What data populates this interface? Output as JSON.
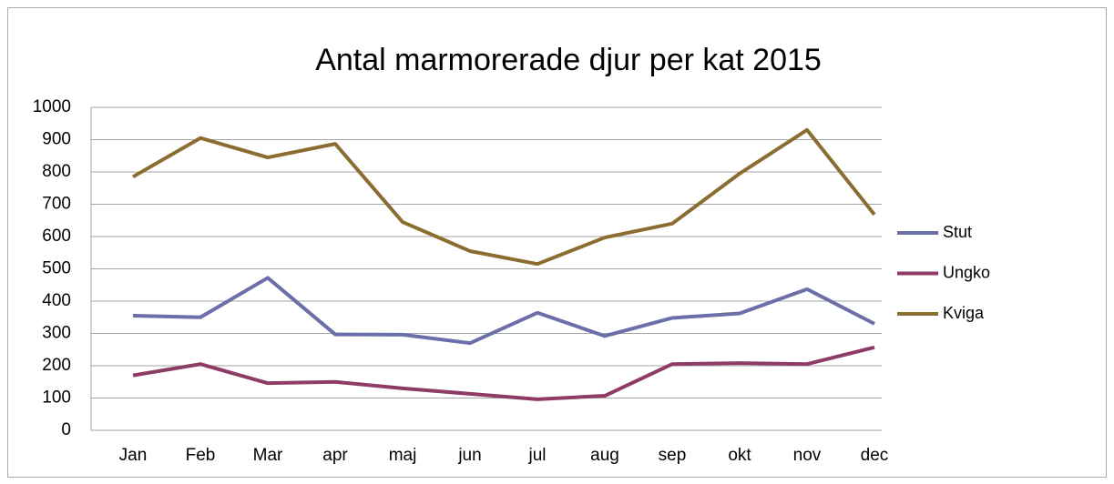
{
  "chart_data": {
    "type": "line",
    "title": "Antal marmorerade djur per kat 2015",
    "categories": [
      "Jan",
      "Feb",
      "Mar",
      "apr",
      "maj",
      "jun",
      "jul",
      "aug",
      "sep",
      "okt",
      "nov",
      "dec"
    ],
    "series": [
      {
        "name": "Stut",
        "color": "#6b6ea8",
        "values": [
          355,
          350,
          472,
          297,
          296,
          270,
          364,
          292,
          348,
          362,
          437,
          330
        ]
      },
      {
        "name": "Ungko",
        "color": "#8e3b66",
        "values": [
          170,
          205,
          146,
          150,
          130,
          113,
          96,
          107,
          205,
          208,
          205,
          257
        ]
      },
      {
        "name": "Kviga",
        "color": "#8c6d31",
        "values": [
          785,
          905,
          845,
          887,
          645,
          555,
          515,
          597,
          640,
          795,
          930,
          668
        ]
      }
    ],
    "ylim": [
      0,
      1000
    ],
    "yticks": [
      0,
      100,
      200,
      300,
      400,
      500,
      600,
      700,
      800,
      900,
      1000
    ],
    "grid": true,
    "legend": "right"
  }
}
